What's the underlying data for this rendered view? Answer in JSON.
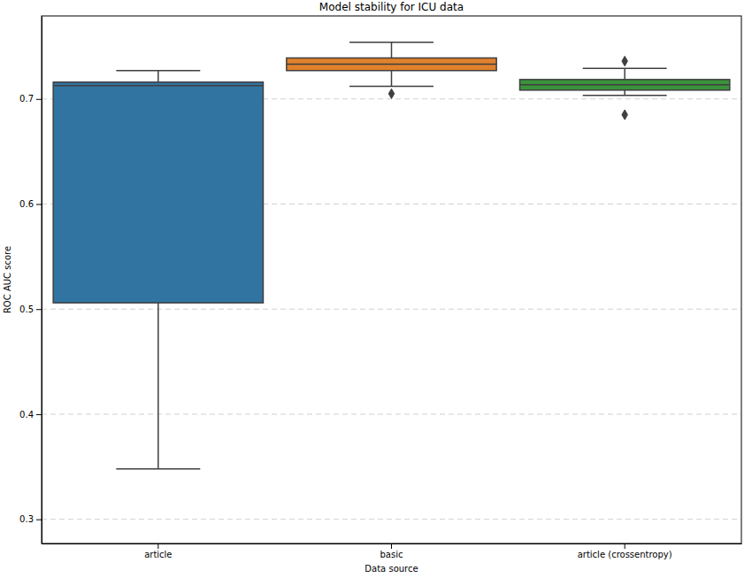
{
  "chart_data": {
    "type": "box",
    "title": "Model stability for ICU data",
    "x_label": "Data source",
    "y_label": "ROC AUC score",
    "categories": [
      "article",
      "basic",
      "article (crossentropy)"
    ],
    "boxes": [
      {
        "whisker_low": 0.348,
        "q1": 0.506,
        "median": 0.7126,
        "q3": 0.716,
        "whisker_high": 0.727,
        "outliers": []
      },
      {
        "whisker_low": 0.712,
        "q1": 0.727,
        "median": 0.733,
        "q3": 0.739,
        "whisker_high": 0.754,
        "outliers": [
          0.705
        ]
      },
      {
        "whisker_low": 0.7034,
        "q1": 0.7084,
        "median": 0.7135,
        "q3": 0.7185,
        "whisker_high": 0.729,
        "outliers": [
          0.736,
          0.685
        ]
      }
    ],
    "colors": [
      "#3274a1",
      "#e1812c",
      "#3a923a"
    ],
    "ylim": [
      0.277,
      0.779
    ],
    "yticks": [
      0.3,
      0.4,
      0.5,
      0.6,
      0.7
    ],
    "grid": true,
    "marker": "diamond"
  }
}
